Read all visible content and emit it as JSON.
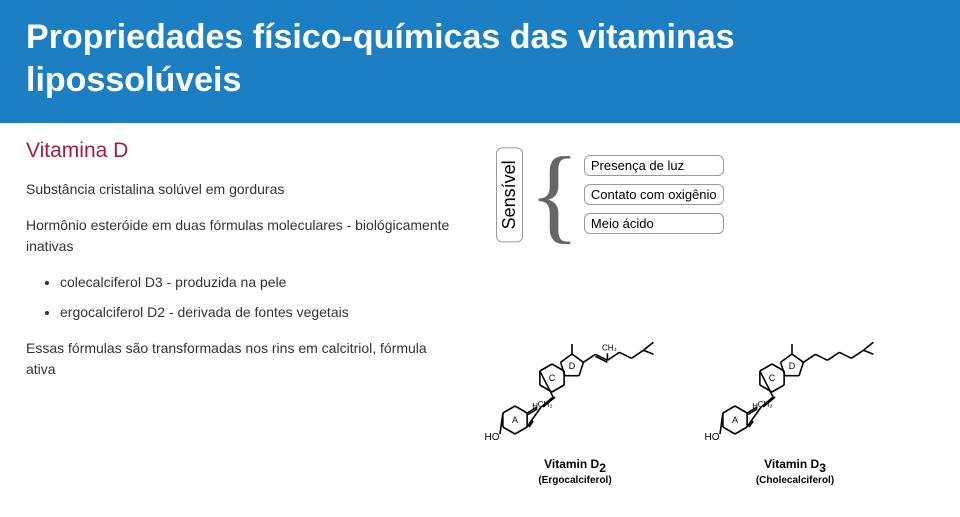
{
  "banner": {
    "title": "Propriedades físico-químicas das vitaminas lipossolúveis"
  },
  "content": {
    "subtitle": "Vitamina D",
    "para1": "Substância cristalina solúvel em gorduras",
    "para2": "Hormônio esteróide em duas fórmulas moleculares - biológicamente inativas",
    "bullets": [
      "colecalciferol D3 - produzida na pele",
      "ergocalciferol D2 - derivada de fontes vegetais"
    ],
    "para3": "Essas fórmulas são transformadas nos rins em calcitriol, fórmula ativa"
  },
  "sensitivity": {
    "label": "Sensível",
    "items": [
      "Presença de luz",
      "Contato com oxigênio",
      "Meio ácido"
    ]
  },
  "molecules": [
    {
      "name": "Vitamin D",
      "sub": "2",
      "desc": "(Ergocalciferol)",
      "tail_methyl": true,
      "tail_double": true
    },
    {
      "name": "Vitamin D",
      "sub": "3",
      "desc": "(Cholecalciferol)",
      "tail_methyl": false,
      "tail_double": false
    }
  ],
  "colors": {
    "banner_bg": "#1c7fc4",
    "banner_text": "#ffffff",
    "subtitle": "#a61c3c",
    "body_text": "#333333",
    "box_border": "#999999",
    "mol_stroke": "#000000"
  }
}
